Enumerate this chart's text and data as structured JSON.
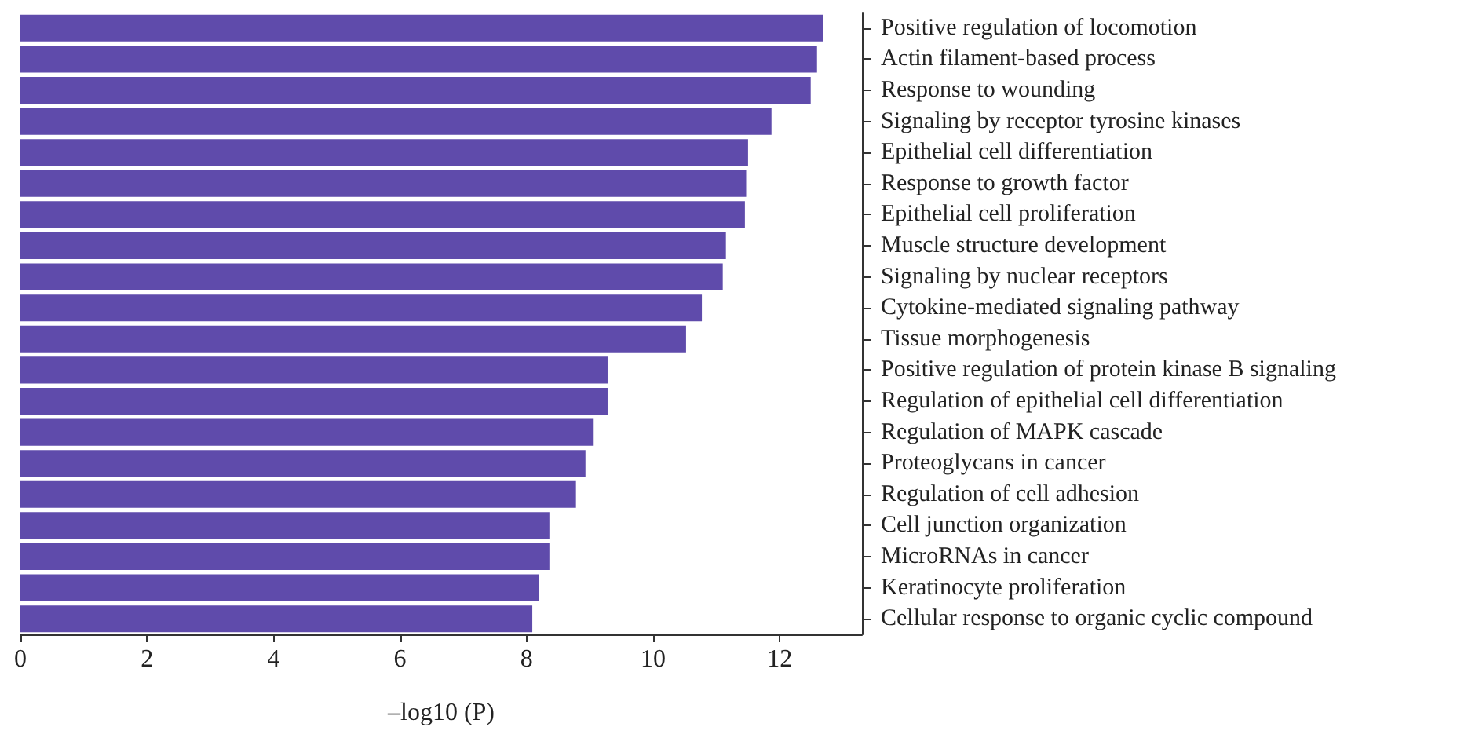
{
  "chart_data": {
    "type": "bar",
    "orientation": "horizontal",
    "xlabel": "–log10 (P)",
    "categories": [
      "Positive regulation of locomotion",
      "Actin filament-based process",
      "Response to wounding",
      "Signaling by receptor tyrosine kinases",
      "Epithelial cell differentiation",
      "Response to growth factor",
      "Epithelial cell proliferation",
      "Muscle structure development",
      "Signaling by nuclear receptors",
      "Cytokine-mediated signaling pathway",
      "Tissue morphogenesis",
      "Positive regulation of protein kinase B signaling",
      "Regulation of epithelial cell differentiation",
      "Regulation of MAPK cascade",
      "Proteoglycans in cancer",
      "Regulation of cell adhesion",
      "Cell junction organization",
      "MicroRNAs in cancer",
      "Keratinocyte proliferation",
      "Cellular response to organic cyclic compound"
    ],
    "values": [
      12.69,
      12.59,
      12.49,
      11.87,
      11.5,
      11.47,
      11.45,
      11.15,
      11.1,
      10.77,
      10.52,
      9.28,
      9.28,
      9.06,
      8.93,
      8.78,
      8.36,
      8.36,
      8.19,
      8.09
    ],
    "color": "#5f4bab",
    "xlim": [
      0,
      13.3
    ],
    "xticks": [
      0,
      2,
      4,
      6,
      8,
      10,
      12
    ],
    "grid": false
  }
}
